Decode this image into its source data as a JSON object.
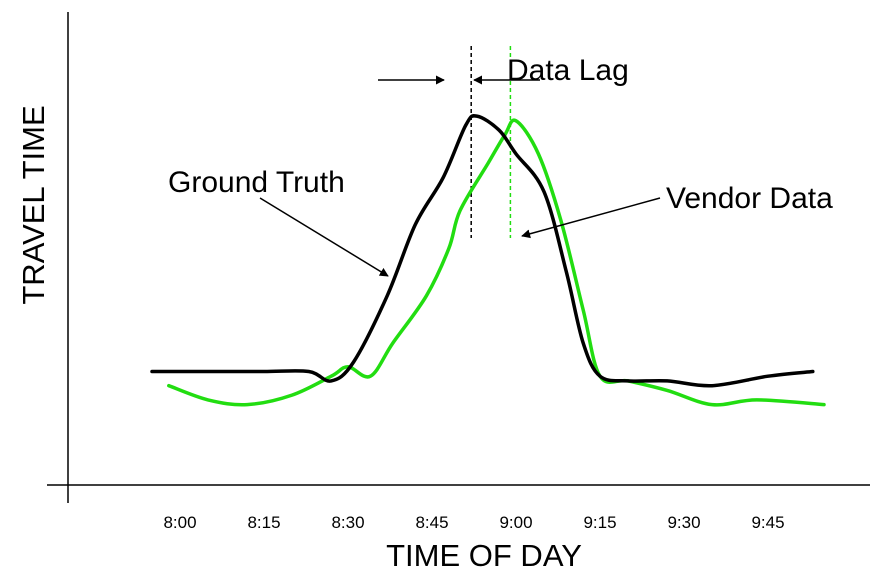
{
  "chart_data": {
    "type": "line",
    "title": "",
    "xlabel": "TIME OF DAY",
    "ylabel": "TRAVEL TIME",
    "x_ticks": [
      "8:00",
      "8:15",
      "8:30",
      "8:45",
      "9:00",
      "9:15",
      "9:30",
      "9:45"
    ],
    "y_ticks_labeled": false,
    "xlim": [
      "7:40",
      "10:05"
    ],
    "series": [
      {
        "name": "Ground Truth",
        "color": "#000000",
        "points": [
          [
            "7:55",
            24
          ],
          [
            "8:05",
            24
          ],
          [
            "8:15",
            24
          ],
          [
            "8:23",
            24
          ],
          [
            "8:27",
            22
          ],
          [
            "8:31",
            26
          ],
          [
            "8:37",
            40
          ],
          [
            "8:42",
            55
          ],
          [
            "8:47",
            65
          ],
          [
            "8:51",
            76
          ],
          [
            "8:53",
            78
          ],
          [
            "8:57",
            75
          ],
          [
            "9:00",
            70
          ],
          [
            "9:05",
            62
          ],
          [
            "9:09",
            45
          ],
          [
            "9:12",
            30
          ],
          [
            "9:15",
            23
          ],
          [
            "9:20",
            22
          ],
          [
            "9:27",
            22
          ],
          [
            "9:35",
            21
          ],
          [
            "9:45",
            23
          ],
          [
            "9:53",
            24
          ]
        ]
      },
      {
        "name": "Vendor Data",
        "color": "#22dd11",
        "points": [
          [
            "7:58",
            21
          ],
          [
            "8:05",
            18
          ],
          [
            "8:12",
            17
          ],
          [
            "8:20",
            19
          ],
          [
            "8:27",
            23
          ],
          [
            "8:30",
            25
          ],
          [
            "8:34",
            23
          ],
          [
            "8:38",
            30
          ],
          [
            "8:44",
            40
          ],
          [
            "8:48",
            50
          ],
          [
            "8:50",
            58
          ],
          [
            "8:55",
            68
          ],
          [
            "8:58",
            74
          ],
          [
            "9:00",
            77
          ],
          [
            "9:04",
            70
          ],
          [
            "9:08",
            56
          ],
          [
            "9:12",
            37
          ],
          [
            "9:15",
            23
          ],
          [
            "9:20",
            22
          ],
          [
            "9:27",
            20
          ],
          [
            "9:35",
            17
          ],
          [
            "9:43",
            18
          ],
          [
            "9:55",
            17
          ]
        ]
      }
    ],
    "reference_lines": [
      {
        "x": "8:52",
        "color": "#000000",
        "style": "dashed"
      },
      {
        "x": "8:59",
        "color": "#22dd11",
        "style": "dashed"
      }
    ],
    "annotations": [
      {
        "text": "Ground Truth",
        "color": "#000000",
        "points_to": "Ground Truth"
      },
      {
        "text": "Vendor Data",
        "color": "#000000",
        "points_to": "Vendor Data"
      },
      {
        "text": "Data Lag",
        "color": "#ff0000"
      }
    ]
  }
}
